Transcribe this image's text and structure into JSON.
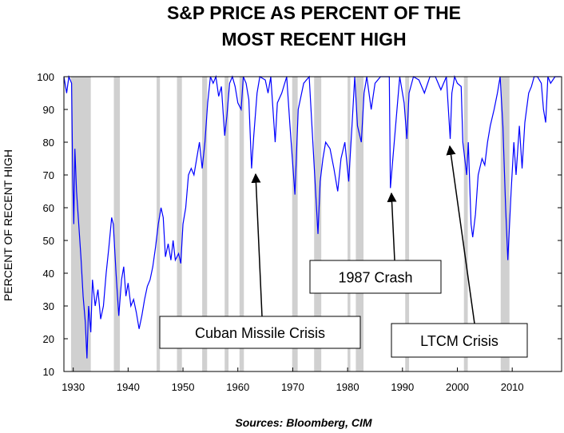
{
  "chart_data": {
    "type": "line",
    "title": [
      "S&P PRICE AS PERCENT OF THE",
      "MOST RECENT HIGH"
    ],
    "y_label": "PERCENT OF RECENT HIGH",
    "source": "Sources:  Bloomberg, CIM",
    "xlim": [
      1928.3,
      2019
    ],
    "ylim": [
      10,
      100
    ],
    "xticks": [
      1930,
      1940,
      1950,
      1960,
      1970,
      1980,
      1990,
      2000,
      2010
    ],
    "yticks": [
      10,
      20,
      30,
      40,
      50,
      60,
      70,
      80,
      90,
      100
    ],
    "recessions": [
      [
        1929.6,
        1933.2
      ],
      [
        1937.4,
        1938.5
      ],
      [
        1945.2,
        1945.8
      ],
      [
        1948.9,
        1949.8
      ],
      [
        1953.5,
        1954.4
      ],
      [
        1957.6,
        1958.3
      ],
      [
        1960.3,
        1961.1
      ],
      [
        1969.9,
        1970.9
      ],
      [
        1973.9,
        1975.2
      ],
      [
        1980.0,
        1980.5
      ],
      [
        1981.5,
        1982.9
      ],
      [
        1990.5,
        1991.2
      ],
      [
        2001.2,
        2001.9
      ],
      [
        2007.9,
        2009.5
      ]
    ],
    "recession_color": "#d0d0d0",
    "series": [
      {
        "name": "S&P price as percent of most recent high",
        "color": "#0000ff",
        "x": [
          1928.3,
          1928.8,
          1929.2,
          1929.7,
          1929.9,
          1930.1,
          1930.3,
          1930.6,
          1931,
          1931.4,
          1931.8,
          1932.2,
          1932.5,
          1932.8,
          1933.2,
          1933.5,
          1934,
          1934.5,
          1935,
          1935.5,
          1936,
          1936.5,
          1937,
          1937.3,
          1937.8,
          1938.3,
          1938.8,
          1939.2,
          1939.6,
          1940,
          1940.5,
          1941,
          1941.5,
          1942,
          1942.5,
          1943,
          1943.5,
          1944,
          1944.5,
          1945,
          1945.5,
          1946,
          1946.4,
          1946.8,
          1947.3,
          1947.8,
          1948.2,
          1948.6,
          1949.2,
          1949.6,
          1950,
          1950.5,
          1951,
          1951.5,
          1952,
          1952.5,
          1953,
          1953.5,
          1954,
          1954.5,
          1955,
          1955.5,
          1956,
          1956.5,
          1957,
          1957.6,
          1958,
          1958.5,
          1959,
          1959.5,
          1960,
          1960.6,
          1961,
          1961.5,
          1962,
          1962.5,
          1962.9,
          1963.5,
          1964,
          1965,
          1965.5,
          1966,
          1966.8,
          1967.2,
          1968,
          1968.9,
          1969.5,
          1970.4,
          1971,
          1972,
          1973,
          1973.5,
          1974,
          1974.6,
          1975,
          1975.5,
          1976,
          1976.8,
          1977.5,
          1978.2,
          1978.8,
          1979.5,
          1980.2,
          1980.8,
          1981.3,
          1981.8,
          1982.5,
          1983,
          1983.5,
          1984.3,
          1985,
          1986,
          1987.6,
          1987.8,
          1988.5,
          1989.5,
          1990.3,
          1990.8,
          1991.2,
          1992,
          1993,
          1994,
          1995,
          1996,
          1997,
          1998,
          1998.7,
          1999,
          1999.5,
          2000,
          2000.7,
          2001,
          2001.7,
          2002,
          2002.5,
          2002.8,
          2003.3,
          2003.8,
          2004.5,
          2005,
          2005.5,
          2006,
          2006.7,
          2007.3,
          2007.8,
          2008.3,
          2008.8,
          2009.2,
          2009.8,
          2010.3,
          2010.7,
          2011.3,
          2011.8,
          2012.3,
          2013,
          2013.5,
          2014,
          2014.6,
          2015.3,
          2015.7,
          2016.1,
          2016.5,
          2017,
          2017.8,
          2018.3,
          2018.8
        ],
        "values": [
          100,
          95,
          100,
          98,
          70,
          55,
          78,
          65,
          55,
          45,
          33,
          25,
          14,
          30,
          22,
          38,
          30,
          35,
          26,
          30,
          40,
          48,
          57,
          55,
          40,
          27,
          38,
          42,
          33,
          37,
          30,
          32,
          28,
          23,
          27,
          32,
          36,
          38,
          42,
          48,
          55,
          60,
          57,
          45,
          49,
          44,
          50,
          44,
          46,
          43,
          55,
          60,
          70,
          72,
          70,
          75,
          80,
          72,
          80,
          92,
          100,
          98,
          100,
          94,
          97,
          82,
          88,
          98,
          100,
          97,
          92,
          90,
          100,
          98,
          93,
          72,
          82,
          95,
          100,
          99,
          95,
          100,
          80,
          92,
          95,
          100,
          85,
          64,
          90,
          98,
          100,
          85,
          70,
          52,
          68,
          75,
          80,
          78,
          72,
          65,
          75,
          80,
          68,
          85,
          100,
          85,
          80,
          95,
          100,
          90,
          98,
          100,
          100,
          66,
          80,
          100,
          92,
          81,
          95,
          100,
          99,
          95,
          100,
          100,
          96,
          100,
          81,
          95,
          100,
          98,
          97,
          80,
          70,
          80,
          55,
          51,
          58,
          70,
          75,
          73,
          80,
          85,
          90,
          95,
          100,
          85,
          60,
          44,
          65,
          80,
          70,
          85,
          72,
          86,
          95,
          97,
          100,
          100,
          98,
          90,
          86,
          100,
          98,
          100,
          100,
          100
        ]
      }
    ],
    "annotations": [
      "Cuban Missile Crisis",
      "1987 Crash",
      "LTCM Crisis"
    ]
  }
}
